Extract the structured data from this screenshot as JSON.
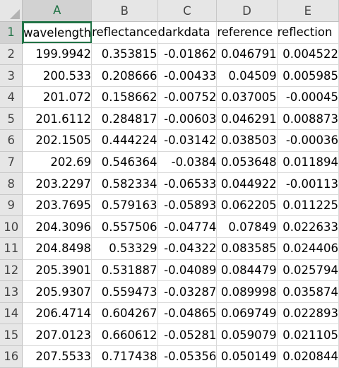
{
  "columns": [
    "A",
    "B",
    "C",
    "D",
    "E"
  ],
  "selected_column": "A",
  "header_row": {
    "row_num": "1",
    "cells": [
      "wavelength",
      "reflectance",
      "darkdata",
      "reference",
      "reflection"
    ]
  },
  "rows": [
    {
      "n": "2",
      "A": "199.9942",
      "B": "0.353815",
      "C": "-0.01862",
      "D": "0.046791",
      "E": "0.004522"
    },
    {
      "n": "3",
      "A": "200.533",
      "B": "0.208666",
      "C": "-0.00433",
      "D": "0.04509",
      "E": "0.005985"
    },
    {
      "n": "4",
      "A": "201.072",
      "B": "0.158662",
      "C": "-0.00752",
      "D": "0.037005",
      "E": "-0.00045"
    },
    {
      "n": "5",
      "A": "201.6112",
      "B": "0.284817",
      "C": "-0.00603",
      "D": "0.046291",
      "E": "0.008873"
    },
    {
      "n": "6",
      "A": "202.1505",
      "B": "0.444224",
      "C": "-0.03142",
      "D": "0.038503",
      "E": "-0.00036"
    },
    {
      "n": "7",
      "A": "202.69",
      "B": "0.546364",
      "C": "-0.0384",
      "D": "0.053648",
      "E": "0.011894"
    },
    {
      "n": "8",
      "A": "203.2297",
      "B": "0.582334",
      "C": "-0.06533",
      "D": "0.044922",
      "E": "-0.00113"
    },
    {
      "n": "9",
      "A": "203.7695",
      "B": "0.579163",
      "C": "-0.05893",
      "D": "0.062205",
      "E": "0.011225"
    },
    {
      "n": "10",
      "A": "204.3096",
      "B": "0.557506",
      "C": "-0.04774",
      "D": "0.07849",
      "E": "0.022633"
    },
    {
      "n": "11",
      "A": "204.8498",
      "B": "0.53329",
      "C": "-0.04322",
      "D": "0.083585",
      "E": "0.024406"
    },
    {
      "n": "12",
      "A": "205.3901",
      "B": "0.531887",
      "C": "-0.04089",
      "D": "0.084479",
      "E": "0.025794"
    },
    {
      "n": "13",
      "A": "205.9307",
      "B": "0.559473",
      "C": "-0.03287",
      "D": "0.089998",
      "E": "0.035874"
    },
    {
      "n": "14",
      "A": "206.4714",
      "B": "0.604267",
      "C": "-0.04865",
      "D": "0.069749",
      "E": "0.022893"
    },
    {
      "n": "15",
      "A": "207.0123",
      "B": "0.660612",
      "C": "-0.05281",
      "D": "0.059079",
      "E": "0.021105"
    },
    {
      "n": "16",
      "A": "207.5533",
      "B": "0.717438",
      "C": "-0.05356",
      "D": "0.050149",
      "E": "0.020844"
    }
  ],
  "colors": {
    "accent": "#217346",
    "header_bg": "#e6e6e6",
    "gridline": "#d9d9d9"
  }
}
